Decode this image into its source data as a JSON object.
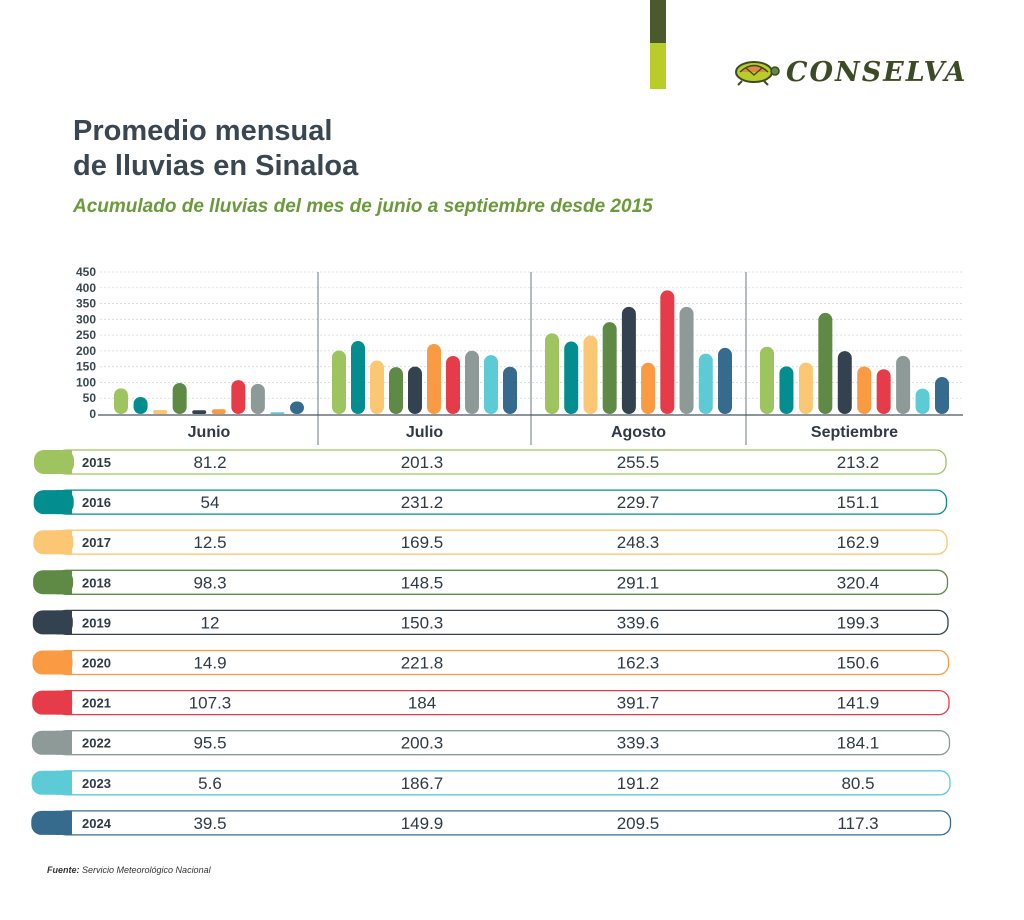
{
  "header": {
    "brand": "CONSELVA",
    "title_line1": "Promedio mensual",
    "title_line2": "de lluvias en Sinaloa",
    "subtitle": "Acumulado de lluvias del mes de junio a septiembre desde 2015"
  },
  "footer": {
    "source_label": "Fuente:",
    "source_text": "Servicio Meteorológico Nacional"
  },
  "colors": {
    "2015": "#9dc45f",
    "2016": "#038d8f",
    "2017": "#fbc775",
    "2018": "#5e8a45",
    "2019": "#33424e",
    "2020": "#fa9a43",
    "2021": "#e63c4a",
    "2022": "#8d9a98",
    "2023": "#5ccbd6",
    "2024": "#366b8e"
  },
  "chart_data": {
    "type": "bar",
    "title": "Promedio mensual de lluvias en Sinaloa",
    "subtitle": "Acumulado de lluvias del mes de junio a septiembre desde 2015",
    "categories": [
      "Junio",
      "Julio",
      "Agosto",
      "Septiembre"
    ],
    "yticks": [
      0,
      50,
      100,
      150,
      200,
      250,
      300,
      350,
      400,
      450
    ],
    "ylim": [
      0,
      450
    ],
    "grid": true,
    "legend": "table-below",
    "series": [
      {
        "name": "2015",
        "values": [
          "81.2",
          "201.3",
          "255.5",
          "213.2"
        ]
      },
      {
        "name": "2016",
        "values": [
          "54",
          "231.2",
          "229.7",
          "151.1"
        ]
      },
      {
        "name": "2017",
        "values": [
          "12.5",
          "169.5",
          "248.3",
          "162.9"
        ]
      },
      {
        "name": "2018",
        "values": [
          "98.3",
          "148.5",
          "291.1",
          "320.4"
        ]
      },
      {
        "name": "2019",
        "values": [
          "12",
          "150.3",
          "339.6",
          "199.3"
        ]
      },
      {
        "name": "2020",
        "values": [
          "14.9",
          "221.8",
          "162.3",
          "150.6"
        ]
      },
      {
        "name": "2021",
        "values": [
          "107.3",
          "184",
          "391.7",
          "141.9"
        ]
      },
      {
        "name": "2022",
        "values": [
          "95.5",
          "200.3",
          "339.3",
          "184.1"
        ]
      },
      {
        "name": "2023",
        "values": [
          "5.6",
          "186.7",
          "191.2",
          "80.5"
        ]
      },
      {
        "name": "2024",
        "values": [
          "39.5",
          "149.9",
          "209.5",
          "117.3"
        ]
      }
    ]
  }
}
